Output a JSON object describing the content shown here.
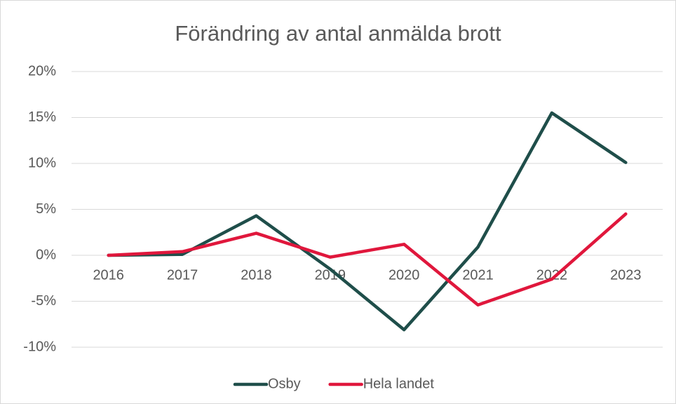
{
  "chart_data": {
    "type": "line",
    "title": "Förändring av antal anmälda brott",
    "categories": [
      "2016",
      "2017",
      "2018",
      "2019",
      "2020",
      "2021",
      "2022",
      "2023"
    ],
    "series": [
      {
        "name": "Osby",
        "color": "#1f4e4a",
        "values": [
          0,
          0.1,
          4.3,
          -1.5,
          -8.1,
          0.9,
          15.5,
          10.1
        ]
      },
      {
        "name": "Hela landet",
        "color": "#e0173c",
        "values": [
          0,
          0.4,
          2.4,
          -0.2,
          1.2,
          -5.4,
          -2.6,
          4.5
        ]
      }
    ],
    "ylim": [
      -10,
      20
    ],
    "yticks": [
      {
        "value": -10,
        "label": "-10%"
      },
      {
        "value": -5,
        "label": "-5%"
      },
      {
        "value": 0,
        "label": "0%"
      },
      {
        "value": 5,
        "label": "5%"
      },
      {
        "value": 10,
        "label": "10%"
      },
      {
        "value": 15,
        "label": "15%"
      },
      {
        "value": 20,
        "label": "20%"
      }
    ],
    "grid": true,
    "legend": "bottom"
  }
}
